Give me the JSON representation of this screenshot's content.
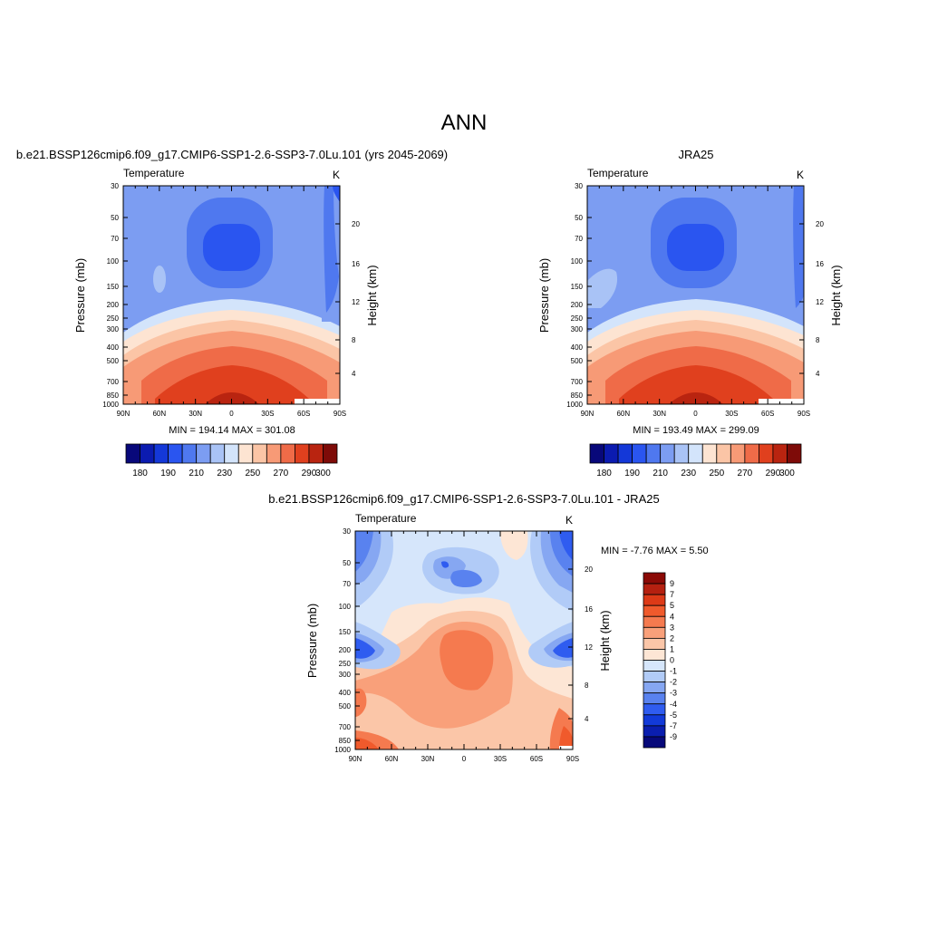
{
  "page_title": "ANN",
  "chart_data": [
    {
      "type": "heatmap",
      "panel_title": "b.e21.BSSP126cmip6.f09_g17.CMIP6-SSP1-2.6-SSP3-7.0Lu.101 (yrs 2045-2069)",
      "left_label": "Temperature",
      "right_label": "K",
      "ylabel": "Pressure (mb)",
      "ylabel_right": "Height (km)",
      "x_ticks": [
        "90N",
        "60N",
        "30N",
        "0",
        "30S",
        "60S",
        "90S"
      ],
      "y_ticks": [
        "30",
        "50",
        "70",
        "100",
        "150",
        "200",
        "250",
        "300",
        "400",
        "500",
        "700",
        "850",
        "1000"
      ],
      "height_ticks": [
        "20",
        "16",
        "12",
        "8",
        "4"
      ],
      "stats_text": "MIN = 194.14  MAX = 301.08",
      "min": 194.14,
      "max": 301.08,
      "colorbar_labels": [
        "180",
        "190",
        "210",
        "230",
        "250",
        "270",
        "290",
        "300"
      ]
    },
    {
      "type": "heatmap",
      "panel_title": "JRA25",
      "left_label": "Temperature",
      "right_label": "K",
      "ylabel": "Pressure (mb)",
      "ylabel_right": "Height (km)",
      "x_ticks": [
        "90N",
        "60N",
        "30N",
        "0",
        "30S",
        "60S",
        "90S"
      ],
      "y_ticks": [
        "30",
        "50",
        "70",
        "100",
        "150",
        "200",
        "250",
        "300",
        "400",
        "500",
        "700",
        "850",
        "1000"
      ],
      "height_ticks": [
        "20",
        "16",
        "12",
        "8",
        "4"
      ],
      "stats_text": "MIN = 193.49  MAX = 299.09",
      "min": 193.49,
      "max": 299.09,
      "colorbar_labels": [
        "180",
        "190",
        "210",
        "230",
        "250",
        "270",
        "290",
        "300"
      ]
    },
    {
      "type": "heatmap",
      "panel_title": "b.e21.BSSP126cmip6.f09_g17.CMIP6-SSP1-2.6-SSP3-7.0Lu.101 - JRA25",
      "left_label": "Temperature",
      "right_label": "K",
      "ylabel": "Pressure (mb)",
      "ylabel_right": "Height (km)",
      "x_ticks": [
        "90N",
        "60N",
        "30N",
        "0",
        "30S",
        "60S",
        "90S"
      ],
      "y_ticks": [
        "30",
        "50",
        "70",
        "100",
        "150",
        "200",
        "250",
        "300",
        "400",
        "500",
        "700",
        "850",
        "1000"
      ],
      "height_ticks": [
        "20",
        "16",
        "12",
        "8",
        "4"
      ],
      "stats_text": "MIN =  -7.76  MAX =   5.50",
      "min": -7.76,
      "max": 5.5,
      "colorbar_labels": [
        "9",
        "7",
        "5",
        "4",
        "3",
        "2",
        "1",
        "0",
        "-1",
        "-2",
        "-3",
        "-4",
        "-5",
        "-7",
        "-9"
      ]
    }
  ],
  "colors": {
    "abs_palette": [
      "#08087a",
      "#0b1bb0",
      "#1438d8",
      "#2a55f0",
      "#4f78ef",
      "#7c9df2",
      "#a9c3f6",
      "#d3e4fb",
      "#fde4d2",
      "#fbc5a6",
      "#f79a76",
      "#ef6b48",
      "#e0401e",
      "#b92410",
      "#7e0b08"
    ],
    "diff_palette": [
      "#8b0a06",
      "#b52010",
      "#dd3a17",
      "#f05a2c",
      "#f57a4f",
      "#f9a07a",
      "#fbc6a8",
      "#fde6d5",
      "#d6e6fb",
      "#b1cbf7",
      "#86a7f2",
      "#5982ef",
      "#2f5cf0",
      "#123ad9",
      "#0a1eaf",
      "#07097a"
    ]
  }
}
